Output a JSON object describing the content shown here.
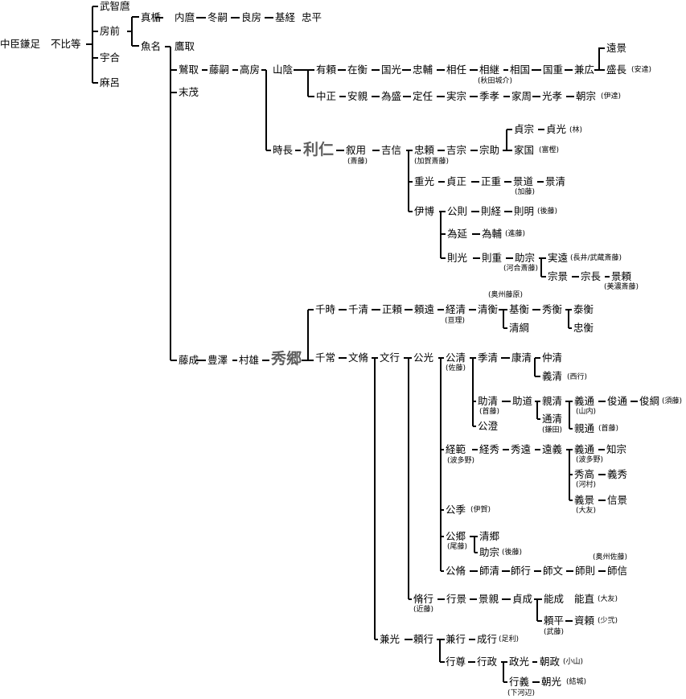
{
  "names": {
    "kamatari": "中臣鎌足",
    "fuhito": "不比等",
    "muchimaro": "武智麿",
    "fusasaki": "房前",
    "umakai": "宇合",
    "maro": "麻呂",
    "matate": "真楯",
    "uchimaro": "内麿",
    "fuyutsugu": "冬嗣",
    "yoshifusa": "良房",
    "mototsune": "基経",
    "tadahira": "忠平",
    "uona": "魚名",
    "takatori": "鷹取",
    "fujitori": "鷲取",
    "suemochi": "末茂",
    "fujitsugu": "藤嗣",
    "takafusa": "高房",
    "yamakage": "山陰",
    "tokinaga": "時長",
    "toshihito": "利仁",
    "ariyori": "有頼",
    "arihira": "在衡",
    "kunimitsu": "国光",
    "tadasuke": "忠輔",
    "suketo": "相任",
    "suketsugu": "相継",
    "sukekuni": "相国",
    "kunishige": "国重",
    "kanehiro": "兼広",
    "toukage": "遠景",
    "morinaga": "盛長",
    "nakamasa": "中正",
    "yasuchika": "安親",
    "tamemori": "為盛",
    "sadato": "定任",
    "sanemune": "実宗",
    "suetaka": "季孝",
    "ienari": "家周",
    "mitsutaka": "光孝",
    "tomomune": "朝宗",
    "nobumochi": "叙用",
    "yoshinobu": "吉信",
    "tadayori": "忠頼",
    "yoshimune": "吉宗",
    "munesuke": "宗助",
    "sadamune": "貞宗",
    "sadamitsu": "貞光",
    "iekuni": "家国",
    "shigemitsu": "重光",
    "sadamasa": "貞正",
    "masashige": "正重",
    "kagemichi": "景道",
    "kagekiyo": "景清",
    "korehiro": "伊博",
    "kimnori": "公則",
    "noritsune": "則経",
    "noriaki": "則明",
    "tamenobu": "為延",
    "tamesuke": "為輔",
    "norimitsu": "則光",
    "norishige": "則重",
    "sukemune": "助宗",
    "saneto": "実遠",
    "munekage": "宗景",
    "munenaga": "宗長",
    "kageyori": "景頼",
    "fujinari": "藤成",
    "toyosawa": "豊澤",
    "murao": "村雄",
    "hidesato": "秀郷",
    "chitoki": "千時",
    "chikiyo": "千清",
    "masayori": "正頼",
    "yoritoo": "頼遠",
    "tsunekiyo": "経清",
    "kiyohira": "清衡",
    "motohira": "基衡",
    "hidehira": "秀衡",
    "yasuhira": "泰衡",
    "tadahira2": "忠衡",
    "kiyotsuna": "清綱",
    "chitsune": "千常",
    "fumiyasu": "文脩",
    "fumiyuki": "文行",
    "kimimitsu": "公光",
    "kimikiyo": "公清",
    "suekiyo": "季清",
    "yasukiyo": "康清",
    "nakakiyo": "仲清",
    "yoshikiyo": "義清",
    "sukekiyo": "助清",
    "sukemichi": "助道",
    "chikakiyo": "親清",
    "yoshimichi": "義通",
    "toshimichi": "俊通",
    "toshitsuna": "俊綱",
    "michikiyo": "通清",
    "chikamichi": "親通",
    "kimizumi": "公澄",
    "tsunenori": "経範",
    "tsunehide": "経秀",
    "hidetoo": "秀遠",
    "tooyoshi": "遠義",
    "yoshimichi2": "義通",
    "tomomune2": "知宗",
    "hidetaka": "秀高",
    "yoshihide": "義秀",
    "yoshikage": "義景",
    "nobukage": "信景",
    "kimisue": "公季",
    "kimisato": "公郷",
    "kiyosato": "清郷",
    "sukemune2": "助宗",
    "kiminaga": "公脩",
    "morokiyo": "師清",
    "moroyuki": "師行",
    "morofumi": "師文",
    "moronori": "師則",
    "moronobu": "師信",
    "nagayuki": "脩行",
    "yukikage": "行景",
    "kagechika": "景親",
    "sadanari": "貞成",
    "yoshinari": "能成",
    "yoshinao": "能直",
    "yorihira": "頼平",
    "sukeyori": "資頼",
    "kanemitsu": "兼光",
    "yoriyuki": "頼行",
    "kaneyuki": "兼行",
    "nariyuki": "成行",
    "yukitaka": "行尊",
    "yukimasa": "行政",
    "masamitsu": "政光",
    "tomomasa": "朝政",
    "yukiyoshi": "行義",
    "tomomitsu": "朝光"
  },
  "notes": {
    "akita": "(秋田城介)",
    "adachi": "(安達)",
    "date": "(伊達)",
    "hayashi": "(林)",
    "toga": "(富樫)",
    "kagasaito": "(加賀斎藤)",
    "saito": "(斎藤)",
    "kato": "(加藤)",
    "goto1": "(後藤)",
    "shindo": "(進藤)",
    "kawaisaito": "(河合斎藤)",
    "nagaimusashi": "(長井/武蔵斎藤)",
    "minosaito": "(美濃斎藤)",
    "oshufujiwara": "(奥州藤原)",
    "watari": "(亘理)",
    "sato1": "(佐藤)",
    "shudo": "(首藤)",
    "kamata": "(鎌田)",
    "nishiyuki": "(西行)",
    "sudo": "(須藤)",
    "yamauchi": "(山内)",
    "shudo2": "(首藤)",
    "hatano1": "(波多野)",
    "hatano2": "(波多野)",
    "kawamura": "(河村)",
    "otomo1": "(大友)",
    "iga": "(伊賀)",
    "bito": "(尾藤)",
    "goto2": "(後藤)",
    "oshusato": "(奥州佐藤)",
    "kondo": "(近藤)",
    "otomo2": "(大友)",
    "shoni": "(少弐)",
    "muto": "(武藤)",
    "ashikaga": "(足利)",
    "oyama": "(小山)",
    "shimokobe": "(下河辺)",
    "yuki": "(結城)"
  }
}
